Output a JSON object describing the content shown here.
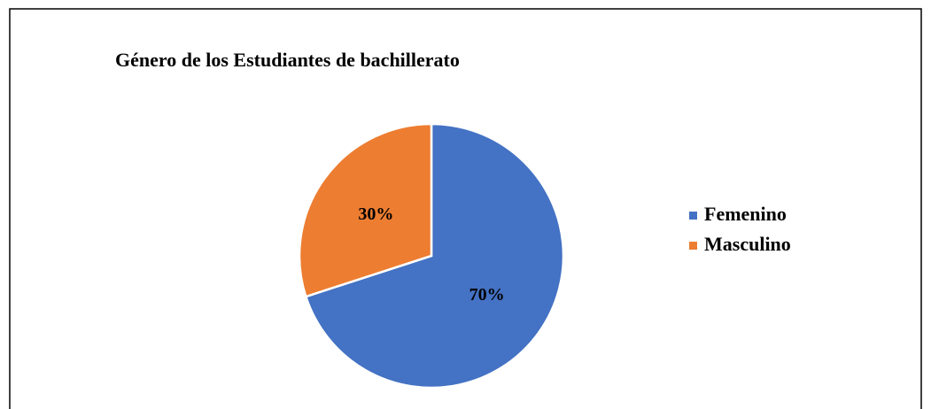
{
  "chart_data": {
    "type": "pie",
    "title": "Género de los Estudiantes de bachillerato",
    "categories": [
      "Femenino",
      "Masculino"
    ],
    "values": [
      70,
      30
    ],
    "value_labels": [
      "70%",
      "30%"
    ],
    "colors": [
      "#4472c4",
      "#ed7d31"
    ],
    "legend": "right"
  }
}
